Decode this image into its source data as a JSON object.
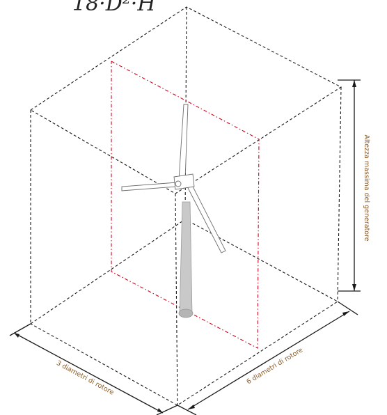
{
  "formula": "18·D²·H",
  "labels": {
    "height": "Altezza massima del generatore",
    "width": "3 diametri di rotore",
    "depth": "6 diametri di rotore"
  },
  "colors": {
    "box_lines": "#1a1a1a",
    "rotor_plane": "#d0021b",
    "label_text": "#8a5a24",
    "tower": "#c9c9c9"
  }
}
